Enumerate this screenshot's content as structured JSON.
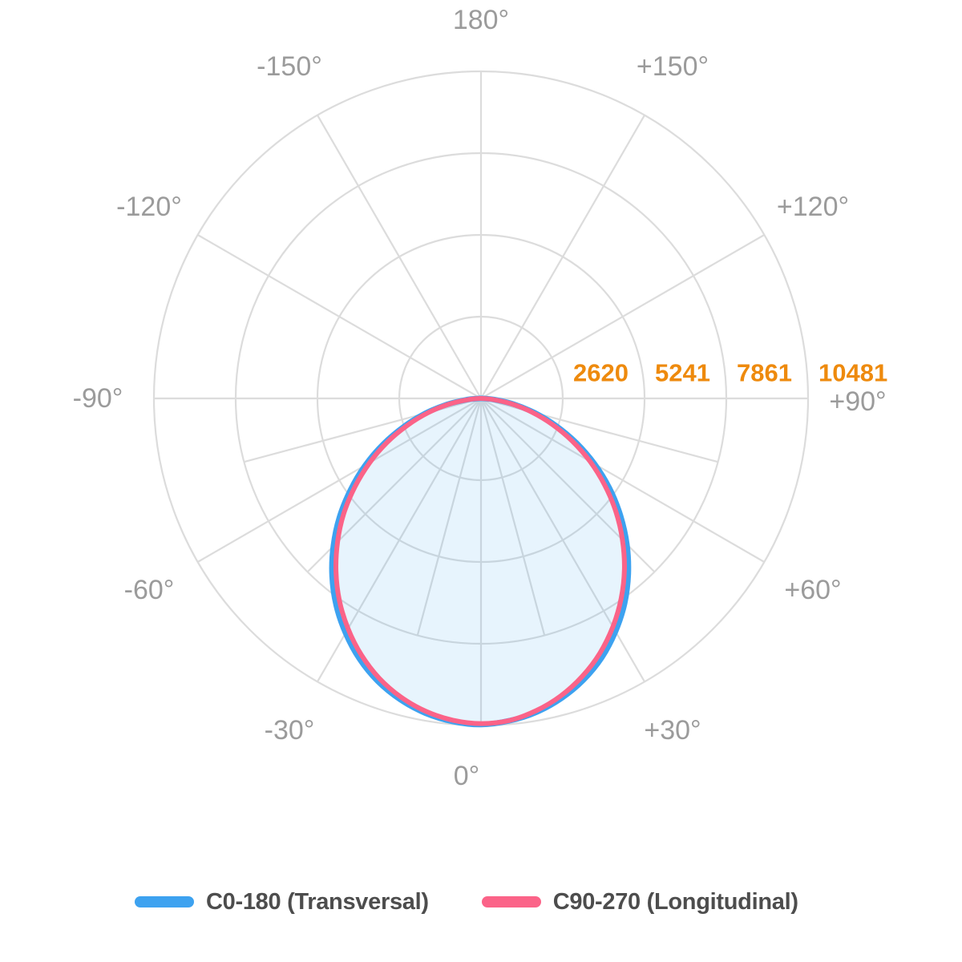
{
  "page": {
    "background": "#FFFFFF"
  },
  "chart_data": {
    "type": "polar",
    "subtype": "photometric-light-distribution",
    "angle_labels": [
      {
        "text": "180°",
        "angle": 180
      },
      {
        "text": "+150°",
        "angle": 150
      },
      {
        "text": "+120°",
        "angle": 120
      },
      {
        "text": "+90°",
        "angle": 90
      },
      {
        "text": "+60°",
        "angle": 60
      },
      {
        "text": "+30°",
        "angle": 30
      },
      {
        "text": "0°",
        "angle": 0
      },
      {
        "text": "-30°",
        "angle": -30
      },
      {
        "text": "-60°",
        "angle": -60
      },
      {
        "text": "-90°",
        "angle": -90
      },
      {
        "text": "-120°",
        "angle": -120
      },
      {
        "text": "-150°",
        "angle": -150
      }
    ],
    "radial_ticks": [
      2620,
      5241,
      7861,
      10481
    ],
    "radial_max": 10481,
    "grid": {
      "color": "#DCDCDC",
      "ring_count": 4,
      "spoke_step_upper_deg": 30,
      "spoke_step_lower_deg": 15
    },
    "colors": {
      "tick_label": "#EE8A0D",
      "angle_label": "#9B9B9B",
      "legend_text": "#4D4D4D",
      "background": "#FFFFFF"
    },
    "legend_position": "bottom",
    "series": [
      {
        "name": "C0-180 (Transversal)",
        "color": "#3DA2F0",
        "fill": "rgba(61,162,240,0.12)",
        "angles_deg": [
          -90,
          -85,
          -80,
          -75,
          -70,
          -65,
          -60,
          -55,
          -50,
          -45,
          -40,
          -35,
          -30,
          -25,
          -20,
          -15,
          -10,
          -5,
          0,
          5,
          10,
          15,
          20,
          25,
          30,
          35,
          40,
          45,
          50,
          55,
          60,
          65,
          70,
          75,
          80,
          85,
          90
        ],
        "intensities": [
          40,
          450,
          1100,
          1840,
          2620,
          3450,
          4280,
          5100,
          5920,
          6690,
          7420,
          8090,
          8680,
          9210,
          9650,
          9990,
          10240,
          10390,
          10450,
          10370,
          10210,
          9950,
          9600,
          9160,
          8620,
          8020,
          7340,
          6610,
          5830,
          5030,
          4200,
          3370,
          2550,
          1770,
          1050,
          430,
          35
        ]
      },
      {
        "name": "C90-270 (Longitudinal)",
        "color": "#FB6388",
        "fill": "none",
        "angles_deg": [
          -90,
          -85,
          -80,
          -75,
          -70,
          -65,
          -60,
          -55,
          -50,
          -45,
          -40,
          -35,
          -30,
          -25,
          -20,
          -15,
          -10,
          -5,
          0,
          5,
          10,
          15,
          20,
          25,
          30,
          35,
          40,
          45,
          50,
          55,
          60,
          65,
          70,
          75,
          80,
          85,
          90
        ],
        "intensities": [
          25,
          400,
          1030,
          1740,
          2500,
          3310,
          4120,
          4930,
          5740,
          6500,
          7230,
          7910,
          8520,
          9070,
          9540,
          9910,
          10180,
          10350,
          10420,
          10360,
          10160,
          9870,
          9480,
          9010,
          8450,
          7830,
          7150,
          6410,
          5640,
          4840,
          4030,
          3220,
          2430,
          1680,
          980,
          380,
          15
        ]
      }
    ]
  },
  "legend": {
    "items": [
      {
        "label": "C0-180 (Transversal)",
        "color": "#3DA2F0"
      },
      {
        "label": "C90-270 (Longitudinal)",
        "color": "#FB6388"
      }
    ]
  }
}
